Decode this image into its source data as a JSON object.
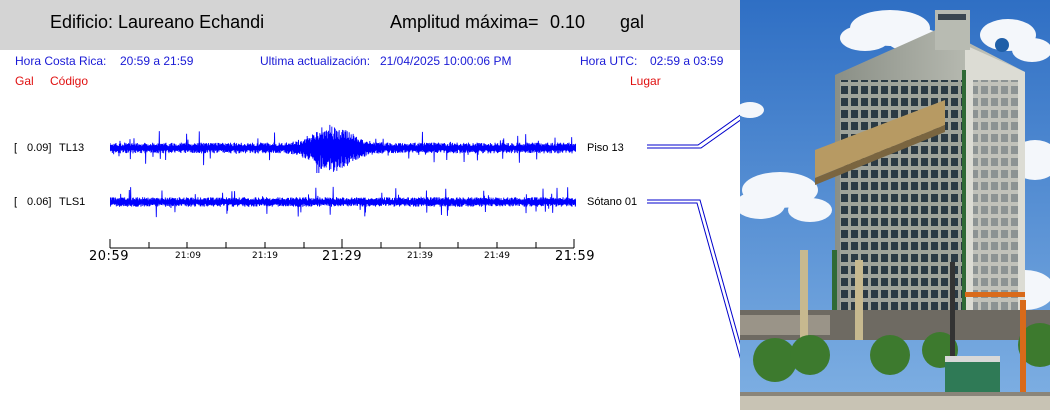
{
  "header": {
    "building": "Edificio: Laureano Echandi",
    "amplitude_label": "Amplitud máxima=",
    "amplitude_value": "0.10",
    "amplitude_unit": "gal"
  },
  "info": {
    "cr_label": "Hora Costa Rica:",
    "cr_value": "20:59 a 21:59",
    "update_label": "Ultima actualización:",
    "update_value": "21/04/2025 10:00:06 PM",
    "utc_label": "Hora UTC:",
    "utc_value": "02:59 a 03:59"
  },
  "columns": {
    "gal": "Gal",
    "code": "Código",
    "place": "Lugar"
  },
  "stations": [
    {
      "open": "[",
      "gal": "0.09]",
      "code": "TL13",
      "place": "Piso 13"
    },
    {
      "open": "[",
      "gal": "0.06]",
      "code": "TLS1",
      "place": "Sótano 01"
    }
  ],
  "time_axis": {
    "major": [
      "20:59",
      "21:29",
      "21:59"
    ],
    "minor": [
      "21:09",
      "21:19",
      "21:39",
      "21:49"
    ]
  },
  "colors": {
    "trace": "#0000ff",
    "info_text": "#1a1ad6",
    "column_headers": "#e01010",
    "header_bg": "#d4d4d4"
  },
  "photo": {
    "subject": "building-photo"
  }
}
